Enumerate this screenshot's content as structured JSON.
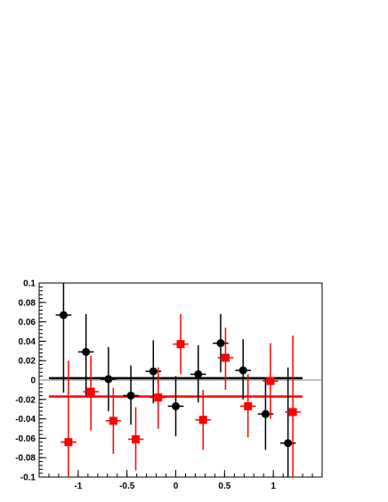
{
  "chart_data": {
    "type": "scatter",
    "title": "",
    "xlabel": "",
    "ylabel": "",
    "xlim": [
      -1.4,
      1.5
    ],
    "ylim": [
      -0.1,
      0.1
    ],
    "x_ticks": [
      {
        "value": -1,
        "label": "-1"
      },
      {
        "value": -0.5,
        "label": "-0.5"
      },
      {
        "value": 0,
        "label": "0"
      },
      {
        "value": 0.5,
        "label": "0.5"
      },
      {
        "value": 1,
        "label": "1"
      }
    ],
    "y_ticks": [
      {
        "value": 0.1,
        "label": "0.1"
      },
      {
        "value": 0.08,
        "label": "0.08"
      },
      {
        "value": 0.06,
        "label": "0.06"
      },
      {
        "value": 0.04,
        "label": "0.04"
      },
      {
        "value": 0.02,
        "label": "0.02"
      },
      {
        "value": 0,
        "label": "0"
      },
      {
        "value": -0.02,
        "label": "-0.02"
      },
      {
        "value": -0.04,
        "label": "-0.04"
      },
      {
        "value": -0.06,
        "label": "-0.06"
      },
      {
        "value": -0.08,
        "label": "-0.08"
      },
      {
        "value": -0.1,
        "label": "-0.1"
      }
    ],
    "grid": false,
    "reference_line_y": 0,
    "series": [
      {
        "marker": "circle",
        "color": "#000000",
        "fit_y": 0.002,
        "fit_x_range": [
          -1.3,
          1.3
        ],
        "points": [
          {
            "x": -1.15,
            "y": 0.067,
            "xerr": 0.08,
            "yerr_low": 0.08,
            "yerr_high": 0.033
          },
          {
            "x": -0.92,
            "y": 0.029,
            "xerr": 0.08,
            "yerr_low": 0.045,
            "yerr_high": 0.039
          },
          {
            "x": -0.69,
            "y": 0.001,
            "xerr": 0.08,
            "yerr_low": 0.033,
            "yerr_high": 0.033
          },
          {
            "x": -0.46,
            "y": -0.016,
            "xerr": 0.08,
            "yerr_low": 0.03,
            "yerr_high": 0.031
          },
          {
            "x": -0.23,
            "y": 0.009,
            "xerr": 0.08,
            "yerr_low": 0.033,
            "yerr_high": 0.032
          },
          {
            "x": 0.0,
            "y": -0.027,
            "xerr": 0.08,
            "yerr_low": 0.031,
            "yerr_high": 0.031
          },
          {
            "x": 0.23,
            "y": 0.006,
            "xerr": 0.08,
            "yerr_low": 0.029,
            "yerr_high": 0.03
          },
          {
            "x": 0.46,
            "y": 0.038,
            "xerr": 0.08,
            "yerr_low": 0.03,
            "yerr_high": 0.03
          },
          {
            "x": 0.69,
            "y": 0.01,
            "xerr": 0.08,
            "yerr_low": 0.03,
            "yerr_high": 0.032
          },
          {
            "x": 0.92,
            "y": -0.035,
            "xerr": 0.08,
            "yerr_low": 0.037,
            "yerr_high": 0.036
          },
          {
            "x": 1.15,
            "y": -0.065,
            "xerr": 0.08,
            "yerr_low": 0.035,
            "yerr_high": 0.078
          }
        ]
      },
      {
        "marker": "square",
        "color": "#ff0000",
        "fit_y": -0.017,
        "fit_x_range": [
          -1.3,
          1.3
        ],
        "points": [
          {
            "x": -1.1,
            "y": -0.064,
            "xerr": 0.08,
            "yerr_low": 0.036,
            "yerr_high": 0.084
          },
          {
            "x": -0.87,
            "y": -0.012,
            "xerr": 0.08,
            "yerr_low": 0.04,
            "yerr_high": 0.037
          },
          {
            "x": -0.64,
            "y": -0.042,
            "xerr": 0.08,
            "yerr_low": 0.034,
            "yerr_high": 0.034
          },
          {
            "x": -0.41,
            "y": -0.061,
            "xerr": 0.08,
            "yerr_low": 0.032,
            "yerr_high": 0.033
          },
          {
            "x": -0.18,
            "y": -0.018,
            "xerr": 0.08,
            "yerr_low": 0.032,
            "yerr_high": 0.031
          },
          {
            "x": 0.05,
            "y": 0.037,
            "xerr": 0.08,
            "yerr_low": 0.031,
            "yerr_high": 0.031
          },
          {
            "x": 0.28,
            "y": -0.041,
            "xerr": 0.08,
            "yerr_low": 0.031,
            "yerr_high": 0.031
          },
          {
            "x": 0.51,
            "y": 0.023,
            "xerr": 0.08,
            "yerr_low": 0.033,
            "yerr_high": 0.031
          },
          {
            "x": 0.74,
            "y": -0.027,
            "xerr": 0.08,
            "yerr_low": 0.032,
            "yerr_high": 0.033
          },
          {
            "x": 0.97,
            "y": -0.001,
            "xerr": 0.08,
            "yerr_low": 0.039,
            "yerr_high": 0.039
          },
          {
            "x": 1.2,
            "y": -0.033,
            "xerr": 0.08,
            "yerr_low": 0.067,
            "yerr_high": 0.079
          }
        ]
      }
    ]
  }
}
